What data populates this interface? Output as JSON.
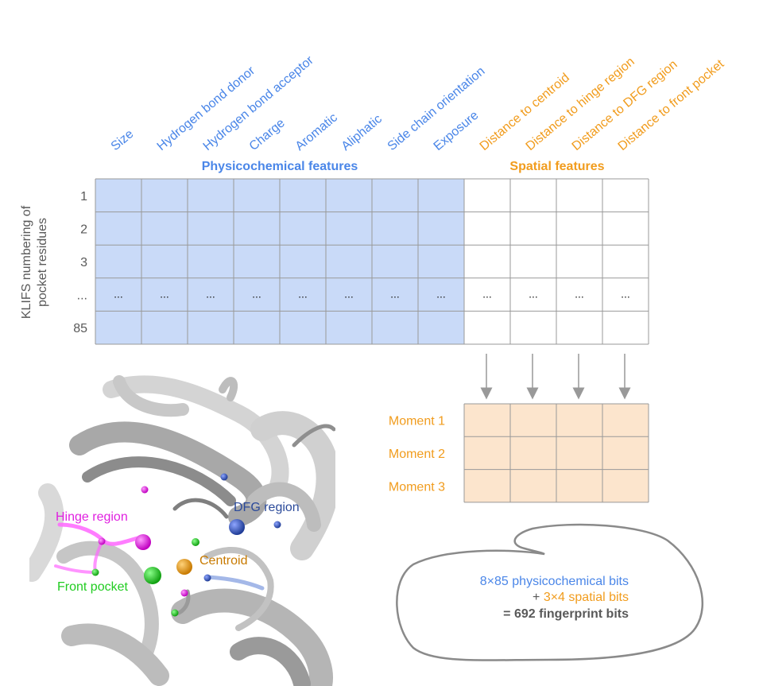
{
  "colors": {
    "physicochemical": "#4a86e8",
    "spatial": "#f19c1d",
    "physico_fill": "#c9daf8",
    "moment_fill": "#fce5cd",
    "grid": "#999999",
    "text_dark": "#595959"
  },
  "columns": {
    "physicochemical": [
      "Size",
      "Hydrogen bond donor",
      "Hydrogen bond acceptor",
      "Charge",
      "Aromatic",
      "Aliphatic",
      "Side chain orientation",
      "Exposure"
    ],
    "spatial": [
      "Distance to centroid",
      "Distance to hinge region",
      "Distance to DFG region",
      "Distance to front pocket"
    ]
  },
  "group_headers": {
    "physicochemical": "Physicochemical features",
    "spatial": "Spatial features"
  },
  "rows": {
    "axis_label_line1": "KLIFS numbering of",
    "axis_label_line2": "pocket residues",
    "labels": [
      "1",
      "2",
      "3",
      "...",
      "85"
    ],
    "ellipsis": "..."
  },
  "moments": [
    "Moment 1",
    "Moment 2",
    "Moment 3"
  ],
  "structure_labels": {
    "hinge": "Hinge region",
    "front": "Front pocket",
    "dfg": "DFG region",
    "centroid": "Centroid"
  },
  "summary": {
    "line1": "8×85 physicochemical bits",
    "line2_prefix": "+ ",
    "line2": "3×4 spatial bits",
    "line3_prefix": "= ",
    "line3": "692 fingerprint bits"
  }
}
